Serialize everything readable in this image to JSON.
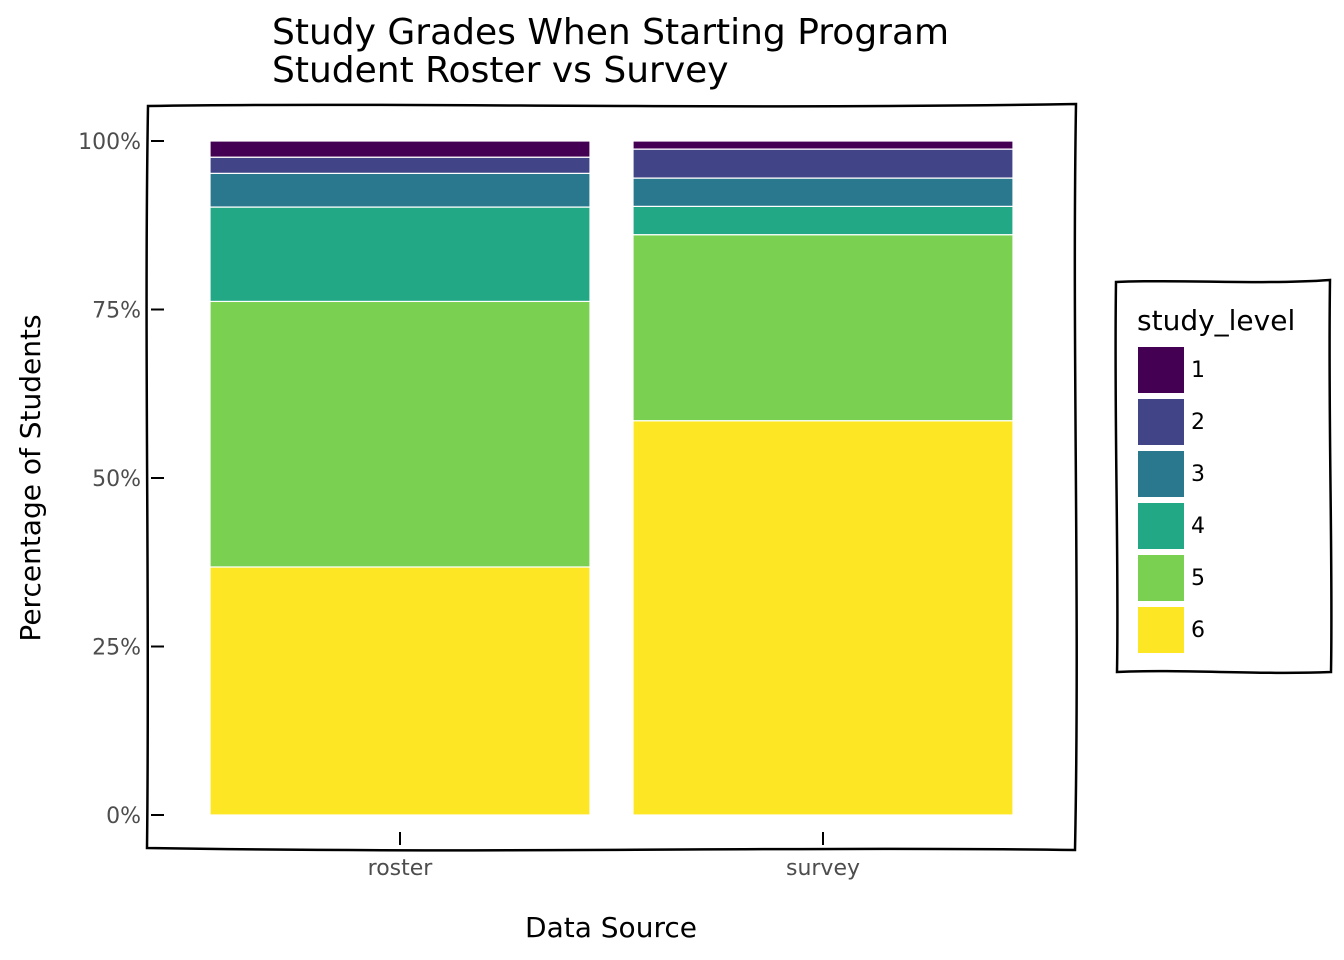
{
  "chart_data": {
    "type": "bar",
    "stacked": "percent",
    "title": "Study Grades When Starting Program",
    "subtitle": "Student Roster vs Survey",
    "xlabel": "Data Source",
    "ylabel": "Percentage of Students",
    "categories": [
      "roster",
      "survey"
    ],
    "ylim": [
      0,
      1
    ],
    "yticks": [
      0,
      0.25,
      0.5,
      0.75,
      1.0
    ],
    "ytick_labels": [
      "0%",
      "25%",
      "50%",
      "75%",
      "100%"
    ],
    "legend": {
      "title": "study_level",
      "placement": "right"
    },
    "grid": false,
    "series": [
      {
        "name": "1",
        "color": "#440154",
        "values": [
          0.024,
          0.012
        ]
      },
      {
        "name": "2",
        "color": "#414487",
        "values": [
          0.024,
          0.043
        ]
      },
      {
        "name": "3",
        "color": "#2a788e",
        "values": [
          0.05,
          0.042
        ]
      },
      {
        "name": "4",
        "color": "#22a884",
        "values": [
          0.14,
          0.042
        ]
      },
      {
        "name": "5",
        "color": "#7ad151",
        "values": [
          0.394,
          0.276
        ]
      },
      {
        "name": "6",
        "color": "#fde725",
        "values": [
          0.368,
          0.585
        ]
      }
    ]
  }
}
